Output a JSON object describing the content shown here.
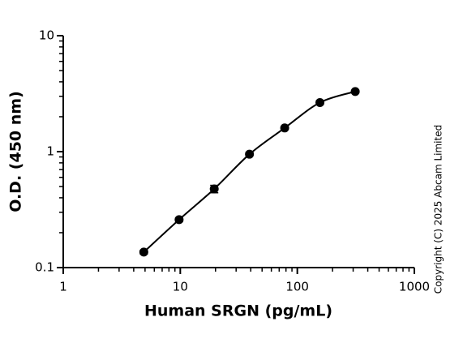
{
  "chart_data": {
    "type": "scatter",
    "x_label": "Human SRGN  (pg/mL)",
    "y_label": "O.D. (450 nm)",
    "annotation": "Copyright (C) 2025 Abcam Limited",
    "x": [
      4.88,
      9.77,
      19.5,
      39,
      78,
      156,
      312.5
    ],
    "values": [
      0.136,
      0.259,
      0.477,
      0.95,
      1.6,
      2.65,
      3.3
    ],
    "errors": [
      0.005,
      0.01,
      0.035,
      0.03,
      0.05,
      0.1,
      0.08
    ],
    "color": "#000000",
    "xlim": [
      1,
      1000
    ],
    "xticks": [
      1,
      10,
      100,
      1000
    ],
    "ylim": [
      0.1,
      10
    ],
    "yticks": [
      0.1,
      1,
      10
    ],
    "xscale": "log",
    "yscale": "log",
    "minor_ticks": true,
    "fit_curve": true
  }
}
